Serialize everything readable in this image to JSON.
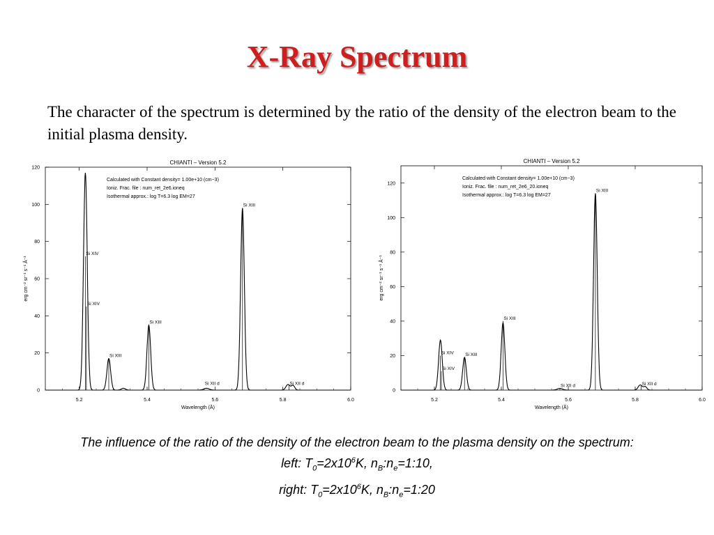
{
  "title": "X-Ray Spectrum",
  "intro": "The character of the spectrum is determined by the ratio of the density of the electron beam to the initial plasma density.",
  "caption": {
    "line1": "The influence of the ratio of the density of the electron beam to the plasma density on the spectrum:",
    "line2": {
      "prefix": "left: T",
      "sub1": "0",
      "mid1": "=2x10",
      "sup1": "6",
      "mid2": "K, n",
      "sub2": "B",
      "mid3": ":n",
      "sub3": "e",
      "suffix": "=1:10,"
    },
    "line3": {
      "prefix": "right: T",
      "sub1": "0",
      "mid1": "=2x10",
      "sup1": "6",
      "mid2": "K, n",
      "sub2": "B",
      "mid3": ":n",
      "sub3": "e",
      "suffix": "=1:20"
    }
  },
  "chart_data": [
    {
      "type": "line",
      "title": "CHIANTI  –  Version 5.2",
      "xlabel": "Wavelength (Å)",
      "ylabel": "erg cm⁻² sr⁻¹ s⁻¹ Å⁻¹",
      "xlim": [
        5.1,
        6.0
      ],
      "ylim": [
        0,
        120
      ],
      "xticks": [
        5.2,
        5.4,
        5.6,
        5.8,
        6.0
      ],
      "yticks": [
        0,
        20,
        40,
        60,
        80,
        100,
        120
      ],
      "info": [
        "Calculated with Constant density=  1.00e+10 (cm−3)",
        "Ioniz. Frac. file : num_ret_2e6.ioneq",
        "Isothermal approx.: log T=6.3 log EM=27"
      ],
      "peaks": [
        {
          "x": 5.218,
          "y": 117,
          "w": 0.0055
        },
        {
          "x": 5.287,
          "y": 17,
          "w": 0.0055
        },
        {
          "x": 5.33,
          "y": 1,
          "w": 0.006
        },
        {
          "x": 5.405,
          "y": 35,
          "w": 0.0055
        },
        {
          "x": 5.575,
          "y": 1,
          "w": 0.008
        },
        {
          "x": 5.681,
          "y": 98,
          "w": 0.0055
        },
        {
          "x": 5.815,
          "y": 3,
          "w": 0.006
        },
        {
          "x": 5.83,
          "y": 2.5,
          "w": 0.005
        }
      ],
      "line_labels": [
        {
          "x": 5.218,
          "label": "Si XIV",
          "label_y": 72,
          "mark_top": 72
        },
        {
          "x": 5.221,
          "label": "Si XIV",
          "label_y": 45,
          "mark_top": 45
        },
        {
          "x": 5.287,
          "label": "Si XIII",
          "label_y": 17,
          "mark_top": 17
        },
        {
          "x": 5.405,
          "label": "Si XIII",
          "label_y": 35,
          "mark_top": 35
        },
        {
          "x": 5.568,
          "label": "Si XII d",
          "label_y": 2,
          "mark_top": 1
        },
        {
          "x": 5.681,
          "label": "Si XIII",
          "label_y": 98,
          "mark_top": 98
        },
        {
          "x": 5.818,
          "label": "Si XII d",
          "label_y": 2,
          "mark_top": 3
        }
      ]
    },
    {
      "type": "line",
      "title": "CHIANTI  –  Version 5.2",
      "xlabel": "Wavelength (Å)",
      "ylabel": "erg cm⁻² sr⁻¹ s⁻¹ Å⁻¹",
      "xlim": [
        5.1,
        6.0
      ],
      "ylim": [
        0,
        130
      ],
      "xticks": [
        5.2,
        5.4,
        5.6,
        5.8,
        6.0
      ],
      "yticks": [
        0,
        20,
        40,
        60,
        80,
        100,
        120
      ],
      "info": [
        "Calculated with Constant density=  1.00e+10 (cm−3)",
        "Ioniz. Frac. file : num_ret_2e6_20.ioneq",
        "Isothermal approx.: log T=6.3 log EM=27"
      ],
      "peaks": [
        {
          "x": 5.218,
          "y": 29,
          "w": 0.0055
        },
        {
          "x": 5.29,
          "y": 19,
          "w": 0.0055
        },
        {
          "x": 5.405,
          "y": 39,
          "w": 0.0055
        },
        {
          "x": 5.575,
          "y": 1,
          "w": 0.008
        },
        {
          "x": 5.681,
          "y": 114,
          "w": 0.0055
        },
        {
          "x": 5.815,
          "y": 3,
          "w": 0.006
        },
        {
          "x": 5.83,
          "y": 2,
          "w": 0.005
        }
      ],
      "line_labels": [
        {
          "x": 5.218,
          "label": "Si XIV",
          "label_y": 20,
          "mark_top": 20
        },
        {
          "x": 5.221,
          "label": "Si XIV",
          "label_y": 11,
          "mark_top": 11
        },
        {
          "x": 5.29,
          "label": "Si XIII",
          "label_y": 19,
          "mark_top": 19
        },
        {
          "x": 5.405,
          "label": "Si XIII",
          "label_y": 40,
          "mark_top": 40
        },
        {
          "x": 5.575,
          "label": "Si XII d",
          "label_y": 1,
          "mark_top": 1
        },
        {
          "x": 5.681,
          "label": "Si XIII",
          "label_y": 114,
          "mark_top": 114
        },
        {
          "x": 5.818,
          "label": "Si XII d",
          "label_y": 2,
          "mark_top": 3
        }
      ]
    }
  ]
}
